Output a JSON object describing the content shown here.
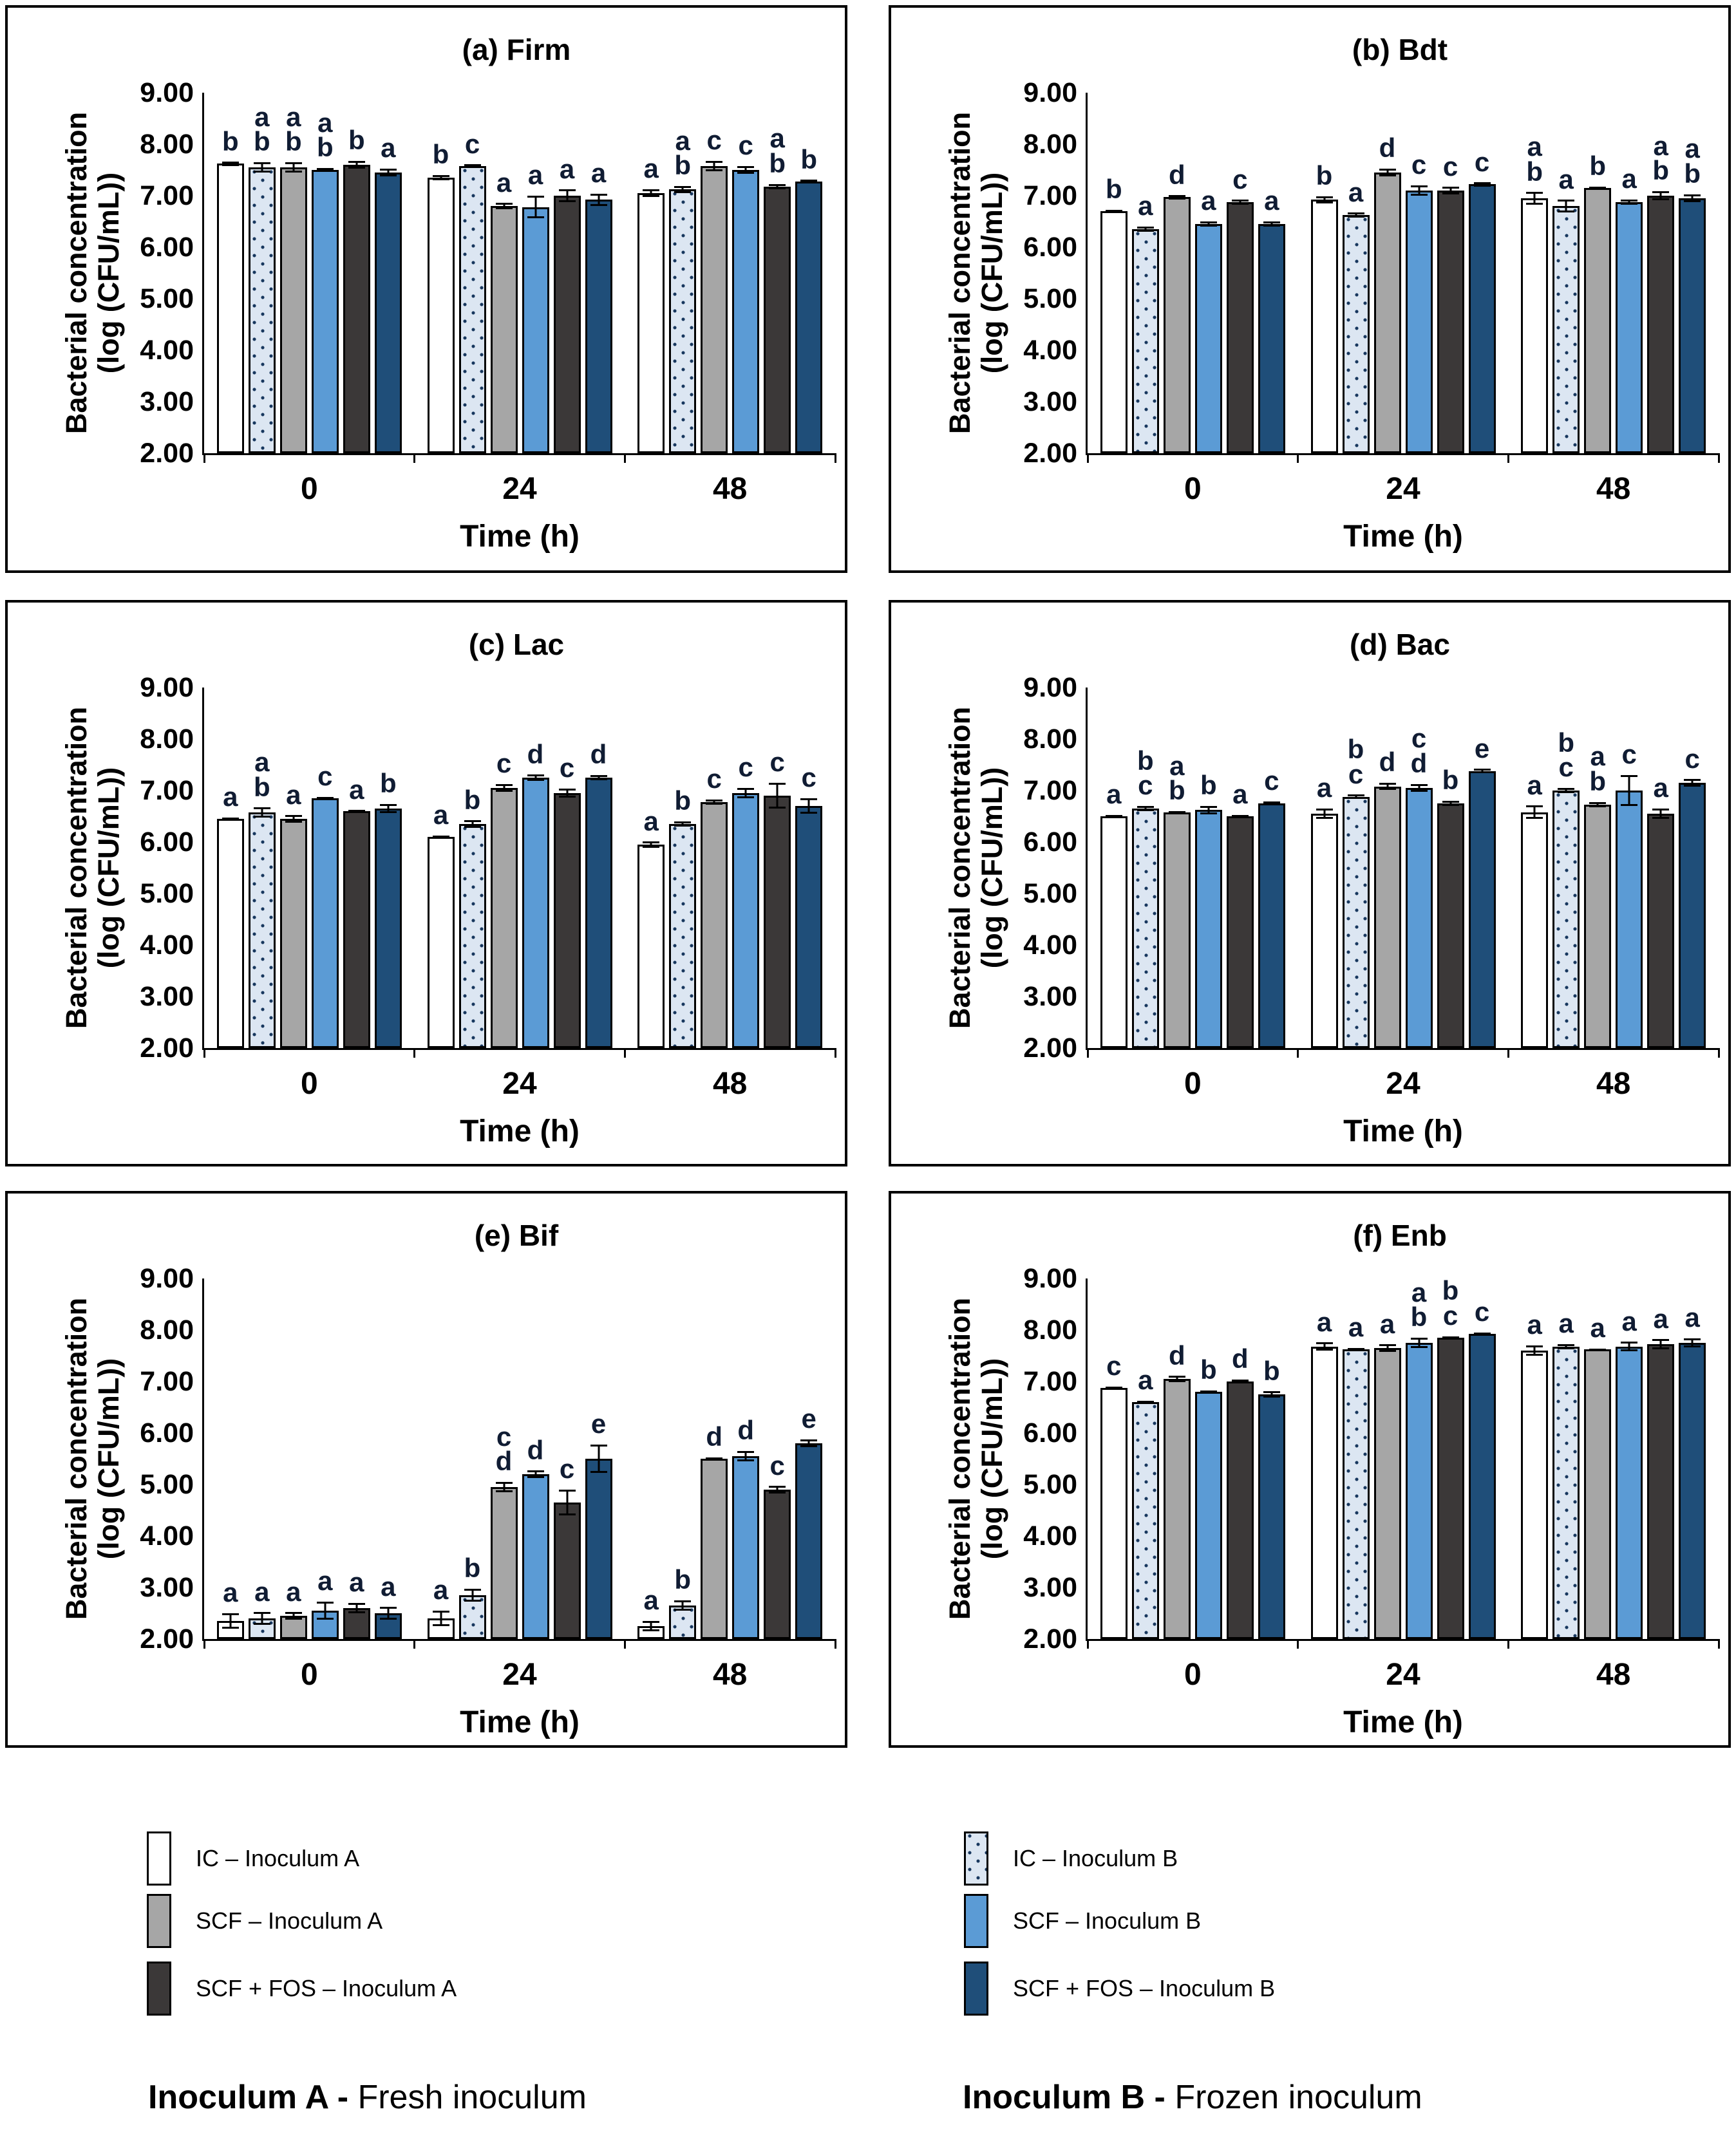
{
  "colors": {
    "ic_a": "#ffffff",
    "ic_b": "#dce6f2",
    "scf_a": "#a6a6a6",
    "scf_b": "#5b9bd5",
    "scffos_a": "#3b3838",
    "scffos_b": "#1f4e79",
    "dot_color": "#17375e",
    "axis_color": "#000000",
    "letter_color": "#101c33"
  },
  "axis": {
    "ylabel_line1": "Bacterial concentration",
    "ylabel_line2": "(log (CFU/mL))",
    "xlabel": "Time (h)",
    "yticks": [
      "9.00",
      "8.00",
      "7.00",
      "6.00",
      "5.00",
      "4.00",
      "3.00",
      "2.00"
    ],
    "ylim": [
      2,
      9
    ],
    "categories": [
      "0",
      "24",
      "48"
    ]
  },
  "legend": {
    "items": [
      {
        "key": "ic_a",
        "label": "IC – Inoculum A"
      },
      {
        "key": "scf_a",
        "label": "SCF – Inoculum A"
      },
      {
        "key": "scffos_a",
        "label": "SCF + FOS – Inoculum A"
      },
      {
        "key": "ic_b",
        "label": "IC – Inoculum B"
      },
      {
        "key": "scf_b",
        "label": "SCF – Inoculum B"
      },
      {
        "key": "scffos_b",
        "label": "SCF + FOS – Inoculum B"
      }
    ],
    "caption_a_bold": "Inoculum A -",
    "caption_a_rest": " Fresh inoculum",
    "caption_b_bold": "Inoculum B -",
    "caption_b_rest": " Frozen inoculum"
  },
  "chart_data": [
    {
      "type": "bar",
      "title": "(a) Firm",
      "categories": [
        "0",
        "24",
        "48"
      ],
      "xlabel": "Time (h)",
      "ylabel": "Bacterial concentration (log (CFU/mL))",
      "ylim": [
        2,
        9
      ],
      "series": [
        {
          "name": "IC – Inoculum A",
          "key": "ic_a",
          "values": [
            7.62,
            7.35,
            7.05
          ],
          "errors": [
            0.04,
            0.05,
            0.08
          ],
          "letters": [
            [
              "b"
            ],
            [
              "b"
            ],
            [
              "a"
            ]
          ]
        },
        {
          "name": "IC – Inoculum B",
          "key": "ic_b",
          "values": [
            7.55,
            7.58,
            7.12
          ],
          "errors": [
            0.1,
            0.03,
            0.07
          ],
          "letters": [
            [
              "a",
              "b"
            ],
            [
              "c"
            ],
            [
              "a",
              "b"
            ]
          ]
        },
        {
          "name": "SCF – Inoculum A",
          "key": "scf_a",
          "values": [
            7.55,
            6.8,
            7.58
          ],
          "errors": [
            0.1,
            0.06,
            0.1
          ],
          "letters": [
            [
              "a",
              "b"
            ],
            [
              "a"
            ],
            [
              "c"
            ]
          ]
        },
        {
          "name": "SCF – Inoculum B",
          "key": "scf_b",
          "values": [
            7.5,
            6.78,
            7.5
          ],
          "errors": [
            0.04,
            0.22,
            0.08
          ],
          "letters": [
            [
              "a",
              "b"
            ],
            [
              "a"
            ],
            [
              "c"
            ]
          ]
        },
        {
          "name": "SCF + FOS – Inoculum A",
          "key": "scffos_a",
          "values": [
            7.6,
            7.0,
            7.18
          ],
          "errors": [
            0.08,
            0.12,
            0.05
          ],
          "letters": [
            [
              "b"
            ],
            [
              "a"
            ],
            [
              "a",
              "b"
            ]
          ]
        },
        {
          "name": "SCF + FOS – Inoculum B",
          "key": "scffos_b",
          "values": [
            7.45,
            6.92,
            7.28
          ],
          "errors": [
            0.08,
            0.12,
            0.03
          ],
          "letters": [
            [
              "a"
            ],
            [
              "a"
            ],
            [
              "b"
            ]
          ]
        }
      ]
    },
    {
      "type": "bar",
      "title": "(b) Bdt",
      "categories": [
        "0",
        "24",
        "48"
      ],
      "xlabel": "Time (h)",
      "ylabel": "Bacterial concentration (log (CFU/mL))",
      "ylim": [
        2,
        9
      ],
      "series": [
        {
          "name": "IC – Inoculum A",
          "key": "ic_a",
          "values": [
            6.7,
            6.92,
            6.95
          ],
          "errors": [
            0.03,
            0.07,
            0.12
          ],
          "letters": [
            [
              "b"
            ],
            [
              "b"
            ],
            [
              "a",
              "b"
            ]
          ]
        },
        {
          "name": "IC – Inoculum B",
          "key": "ic_b",
          "values": [
            6.35,
            6.62,
            6.8
          ],
          "errors": [
            0.05,
            0.05,
            0.12
          ],
          "letters": [
            [
              "a"
            ],
            [
              "a"
            ],
            [
              "a"
            ]
          ]
        },
        {
          "name": "SCF – Inoculum A",
          "key": "scf_a",
          "values": [
            6.97,
            7.45,
            7.15
          ],
          "errors": [
            0.04,
            0.08,
            0.03
          ],
          "letters": [
            [
              "d"
            ],
            [
              "d"
            ],
            [
              "b"
            ]
          ]
        },
        {
          "name": "SCF – Inoculum B",
          "key": "scf_b",
          "values": [
            6.45,
            7.1,
            6.88
          ],
          "errors": [
            0.05,
            0.1,
            0.05
          ],
          "letters": [
            [
              "a"
            ],
            [
              "c"
            ],
            [
              "a"
            ]
          ]
        },
        {
          "name": "SCF + FOS – Inoculum A",
          "key": "scffos_a",
          "values": [
            6.87,
            7.1,
            7.0
          ],
          "errors": [
            0.05,
            0.07,
            0.09
          ],
          "letters": [
            [
              "c"
            ],
            [
              "c"
            ],
            [
              "a",
              "b"
            ]
          ]
        },
        {
          "name": "SCF + FOS – Inoculum B",
          "key": "scffos_b",
          "values": [
            6.45,
            7.22,
            6.95
          ],
          "errors": [
            0.05,
            0.04,
            0.08
          ],
          "letters": [
            [
              "a"
            ],
            [
              "c"
            ],
            [
              "a",
              "b"
            ]
          ]
        }
      ]
    },
    {
      "type": "bar",
      "title": "(c) Lac",
      "categories": [
        "0",
        "24",
        "48"
      ],
      "xlabel": "Time (h)",
      "ylabel": "Bacterial concentration (log (CFU/mL))",
      "ylim": [
        2,
        9
      ],
      "series": [
        {
          "name": "IC – Inoculum A",
          "key": "ic_a",
          "values": [
            6.45,
            6.1,
            5.95
          ],
          "errors": [
            0.03,
            0.03,
            0.06
          ],
          "letters": [
            [
              "a"
            ],
            [
              "a"
            ],
            [
              "a"
            ]
          ]
        },
        {
          "name": "IC – Inoculum B",
          "key": "ic_b",
          "values": [
            6.57,
            6.35,
            6.35
          ],
          "errors": [
            0.1,
            0.07,
            0.05
          ],
          "letters": [
            [
              "a",
              "b"
            ],
            [
              "b"
            ],
            [
              "b"
            ]
          ]
        },
        {
          "name": "SCF – Inoculum A",
          "key": "scf_a",
          "values": [
            6.45,
            7.05,
            6.78
          ],
          "errors": [
            0.07,
            0.08,
            0.05
          ],
          "letters": [
            [
              "a"
            ],
            [
              "c"
            ],
            [
              "c"
            ]
          ]
        },
        {
          "name": "SCF – Inoculum B",
          "key": "scf_b",
          "values": [
            6.85,
            7.25,
            6.95
          ],
          "errors": [
            0.03,
            0.06,
            0.1
          ],
          "letters": [
            [
              "c"
            ],
            [
              "d"
            ],
            [
              "c"
            ]
          ]
        },
        {
          "name": "SCF + FOS – Inoculum A",
          "key": "scffos_a",
          "values": [
            6.6,
            6.95,
            6.9
          ],
          "errors": [
            0.02,
            0.09,
            0.25
          ],
          "letters": [
            [
              "a"
            ],
            [
              "c"
            ],
            [
              "c"
            ]
          ]
        },
        {
          "name": "SCF + FOS – Inoculum B",
          "key": "scffos_b",
          "values": [
            6.65,
            7.25,
            6.7
          ],
          "errors": [
            0.09,
            0.05,
            0.15
          ],
          "letters": [
            [
              "b"
            ],
            [
              "d"
            ],
            [
              "c"
            ]
          ]
        }
      ]
    },
    {
      "type": "bar",
      "title": "(d) Bac",
      "categories": [
        "0",
        "24",
        "48"
      ],
      "xlabel": "Time (h)",
      "ylabel": "Bacterial concentration (log (CFU/mL))",
      "ylim": [
        2,
        9
      ],
      "series": [
        {
          "name": "IC – Inoculum A",
          "key": "ic_a",
          "values": [
            6.5,
            6.55,
            6.58
          ],
          "errors": [
            0.03,
            0.1,
            0.13
          ],
          "letters": [
            [
              "a"
            ],
            [
              "a"
            ],
            [
              "a"
            ]
          ]
        },
        {
          "name": "IC – Inoculum B",
          "key": "ic_b",
          "values": [
            6.65,
            6.88,
            7.0
          ],
          "errors": [
            0.05,
            0.04,
            0.05
          ],
          "letters": [
            [
              "b",
              "c"
            ],
            [
              "b",
              "c"
            ],
            [
              "b",
              "c"
            ]
          ]
        },
        {
          "name": "SCF – Inoculum A",
          "key": "scf_a",
          "values": [
            6.57,
            7.08,
            6.73
          ],
          "errors": [
            0.03,
            0.07,
            0.05
          ],
          "letters": [
            [
              "a",
              "b"
            ],
            [
              "d"
            ],
            [
              "a",
              "b"
            ]
          ]
        },
        {
          "name": "SCF – Inoculum B",
          "key": "scf_b",
          "values": [
            6.62,
            7.05,
            7.0
          ],
          "errors": [
            0.08,
            0.08,
            0.3
          ],
          "letters": [
            [
              "b"
            ],
            [
              "c",
              "d"
            ],
            [
              "c"
            ]
          ]
        },
        {
          "name": "SCF + FOS – Inoculum A",
          "key": "scffos_a",
          "values": [
            6.5,
            6.75,
            6.55
          ],
          "errors": [
            0.03,
            0.05,
            0.1
          ],
          "letters": [
            [
              "a"
            ],
            [
              "b"
            ],
            [
              "a"
            ]
          ]
        },
        {
          "name": "SCF + FOS – Inoculum B",
          "key": "scffos_b",
          "values": [
            6.75,
            7.38,
            7.15
          ],
          "errors": [
            0.04,
            0.04,
            0.07
          ],
          "letters": [
            [
              "c"
            ],
            [
              "e"
            ],
            [
              "c"
            ]
          ]
        }
      ]
    },
    {
      "type": "bar",
      "title": "(e) Bif",
      "categories": [
        "0",
        "24",
        "48"
      ],
      "xlabel": "Time (h)",
      "ylabel": "Bacterial concentration (log (CFU/mL))",
      "ylim": [
        2,
        9
      ],
      "series": [
        {
          "name": "IC – Inoculum A",
          "key": "ic_a",
          "values": [
            2.35,
            2.4,
            2.25
          ],
          "errors": [
            0.15,
            0.15,
            0.1
          ],
          "letters": [
            [
              "a"
            ],
            [
              "a"
            ],
            [
              "a"
            ]
          ]
        },
        {
          "name": "IC – Inoculum B",
          "key": "ic_b",
          "values": [
            2.4,
            2.85,
            2.65
          ],
          "errors": [
            0.12,
            0.13,
            0.1
          ],
          "letters": [
            [
              "a"
            ],
            [
              "b"
            ],
            [
              "b"
            ]
          ]
        },
        {
          "name": "SCF – Inoculum A",
          "key": "scf_a",
          "values": [
            2.45,
            4.95,
            5.5
          ],
          "errors": [
            0.07,
            0.1,
            0.03
          ],
          "letters": [
            [
              "a"
            ],
            [
              "c",
              "d"
            ],
            [
              "d"
            ]
          ]
        },
        {
          "name": "SCF – Inoculum B",
          "key": "scf_b",
          "values": [
            2.55,
            5.2,
            5.55
          ],
          "errors": [
            0.18,
            0.07,
            0.1
          ],
          "letters": [
            [
              "a"
            ],
            [
              "d"
            ],
            [
              "d"
            ]
          ]
        },
        {
          "name": "SCF + FOS – Inoculum A",
          "key": "scffos_a",
          "values": [
            2.6,
            4.65,
            4.9
          ],
          "errors": [
            0.1,
            0.25,
            0.07
          ],
          "letters": [
            [
              "a"
            ],
            [
              "c"
            ],
            [
              "c"
            ]
          ]
        },
        {
          "name": "SCF + FOS – Inoculum B",
          "key": "scffos_b",
          "values": [
            2.5,
            5.5,
            5.8
          ],
          "errors": [
            0.12,
            0.28,
            0.08
          ],
          "letters": [
            [
              "a"
            ],
            [
              "e"
            ],
            [
              "e"
            ]
          ]
        }
      ]
    },
    {
      "type": "bar",
      "title": "(f) Enb",
      "categories": [
        "0",
        "24",
        "48"
      ],
      "xlabel": "Time (h)",
      "ylabel": "Bacterial concentration (log (CFU/mL))",
      "ylim": [
        2,
        9
      ],
      "series": [
        {
          "name": "IC – Inoculum A",
          "key": "ic_a",
          "values": [
            6.88,
            7.68,
            7.6
          ],
          "errors": [
            0.02,
            0.08,
            0.1
          ],
          "letters": [
            [
              "c"
            ],
            [
              "a"
            ],
            [
              "a"
            ]
          ]
        },
        {
          "name": "IC – Inoculum B",
          "key": "ic_b",
          "values": [
            6.6,
            7.62,
            7.68
          ],
          "errors": [
            0.03,
            0.03,
            0.05
          ],
          "letters": [
            [
              "a"
            ],
            [
              "a"
            ],
            [
              "a"
            ]
          ]
        },
        {
          "name": "SCF – Inoculum A",
          "key": "scf_a",
          "values": [
            7.05,
            7.65,
            7.62
          ],
          "errors": [
            0.06,
            0.07,
            0.02
          ],
          "letters": [
            [
              "d"
            ],
            [
              "a"
            ],
            [
              "a"
            ]
          ]
        },
        {
          "name": "SCF – Inoculum B",
          "key": "scf_b",
          "values": [
            6.8,
            7.75,
            7.68
          ],
          "errors": [
            0.03,
            0.1,
            0.09
          ],
          "letters": [
            [
              "b"
            ],
            [
              "a",
              "b"
            ],
            [
              "a"
            ]
          ]
        },
        {
          "name": "SCF + FOS – Inoculum A",
          "key": "scffos_a",
          "values": [
            7.0,
            7.85,
            7.72
          ],
          "errors": [
            0.04,
            0.03,
            0.1
          ],
          "letters": [
            [
              "d"
            ],
            [
              "b",
              "c"
            ],
            [
              "a"
            ]
          ]
        },
        {
          "name": "SCF + FOS – Inoculum B",
          "key": "scffos_b",
          "values": [
            6.75,
            7.92,
            7.75
          ],
          "errors": [
            0.06,
            0.03,
            0.09
          ],
          "letters": [
            [
              "b"
            ],
            [
              "c"
            ],
            [
              "a"
            ]
          ]
        }
      ]
    }
  ]
}
